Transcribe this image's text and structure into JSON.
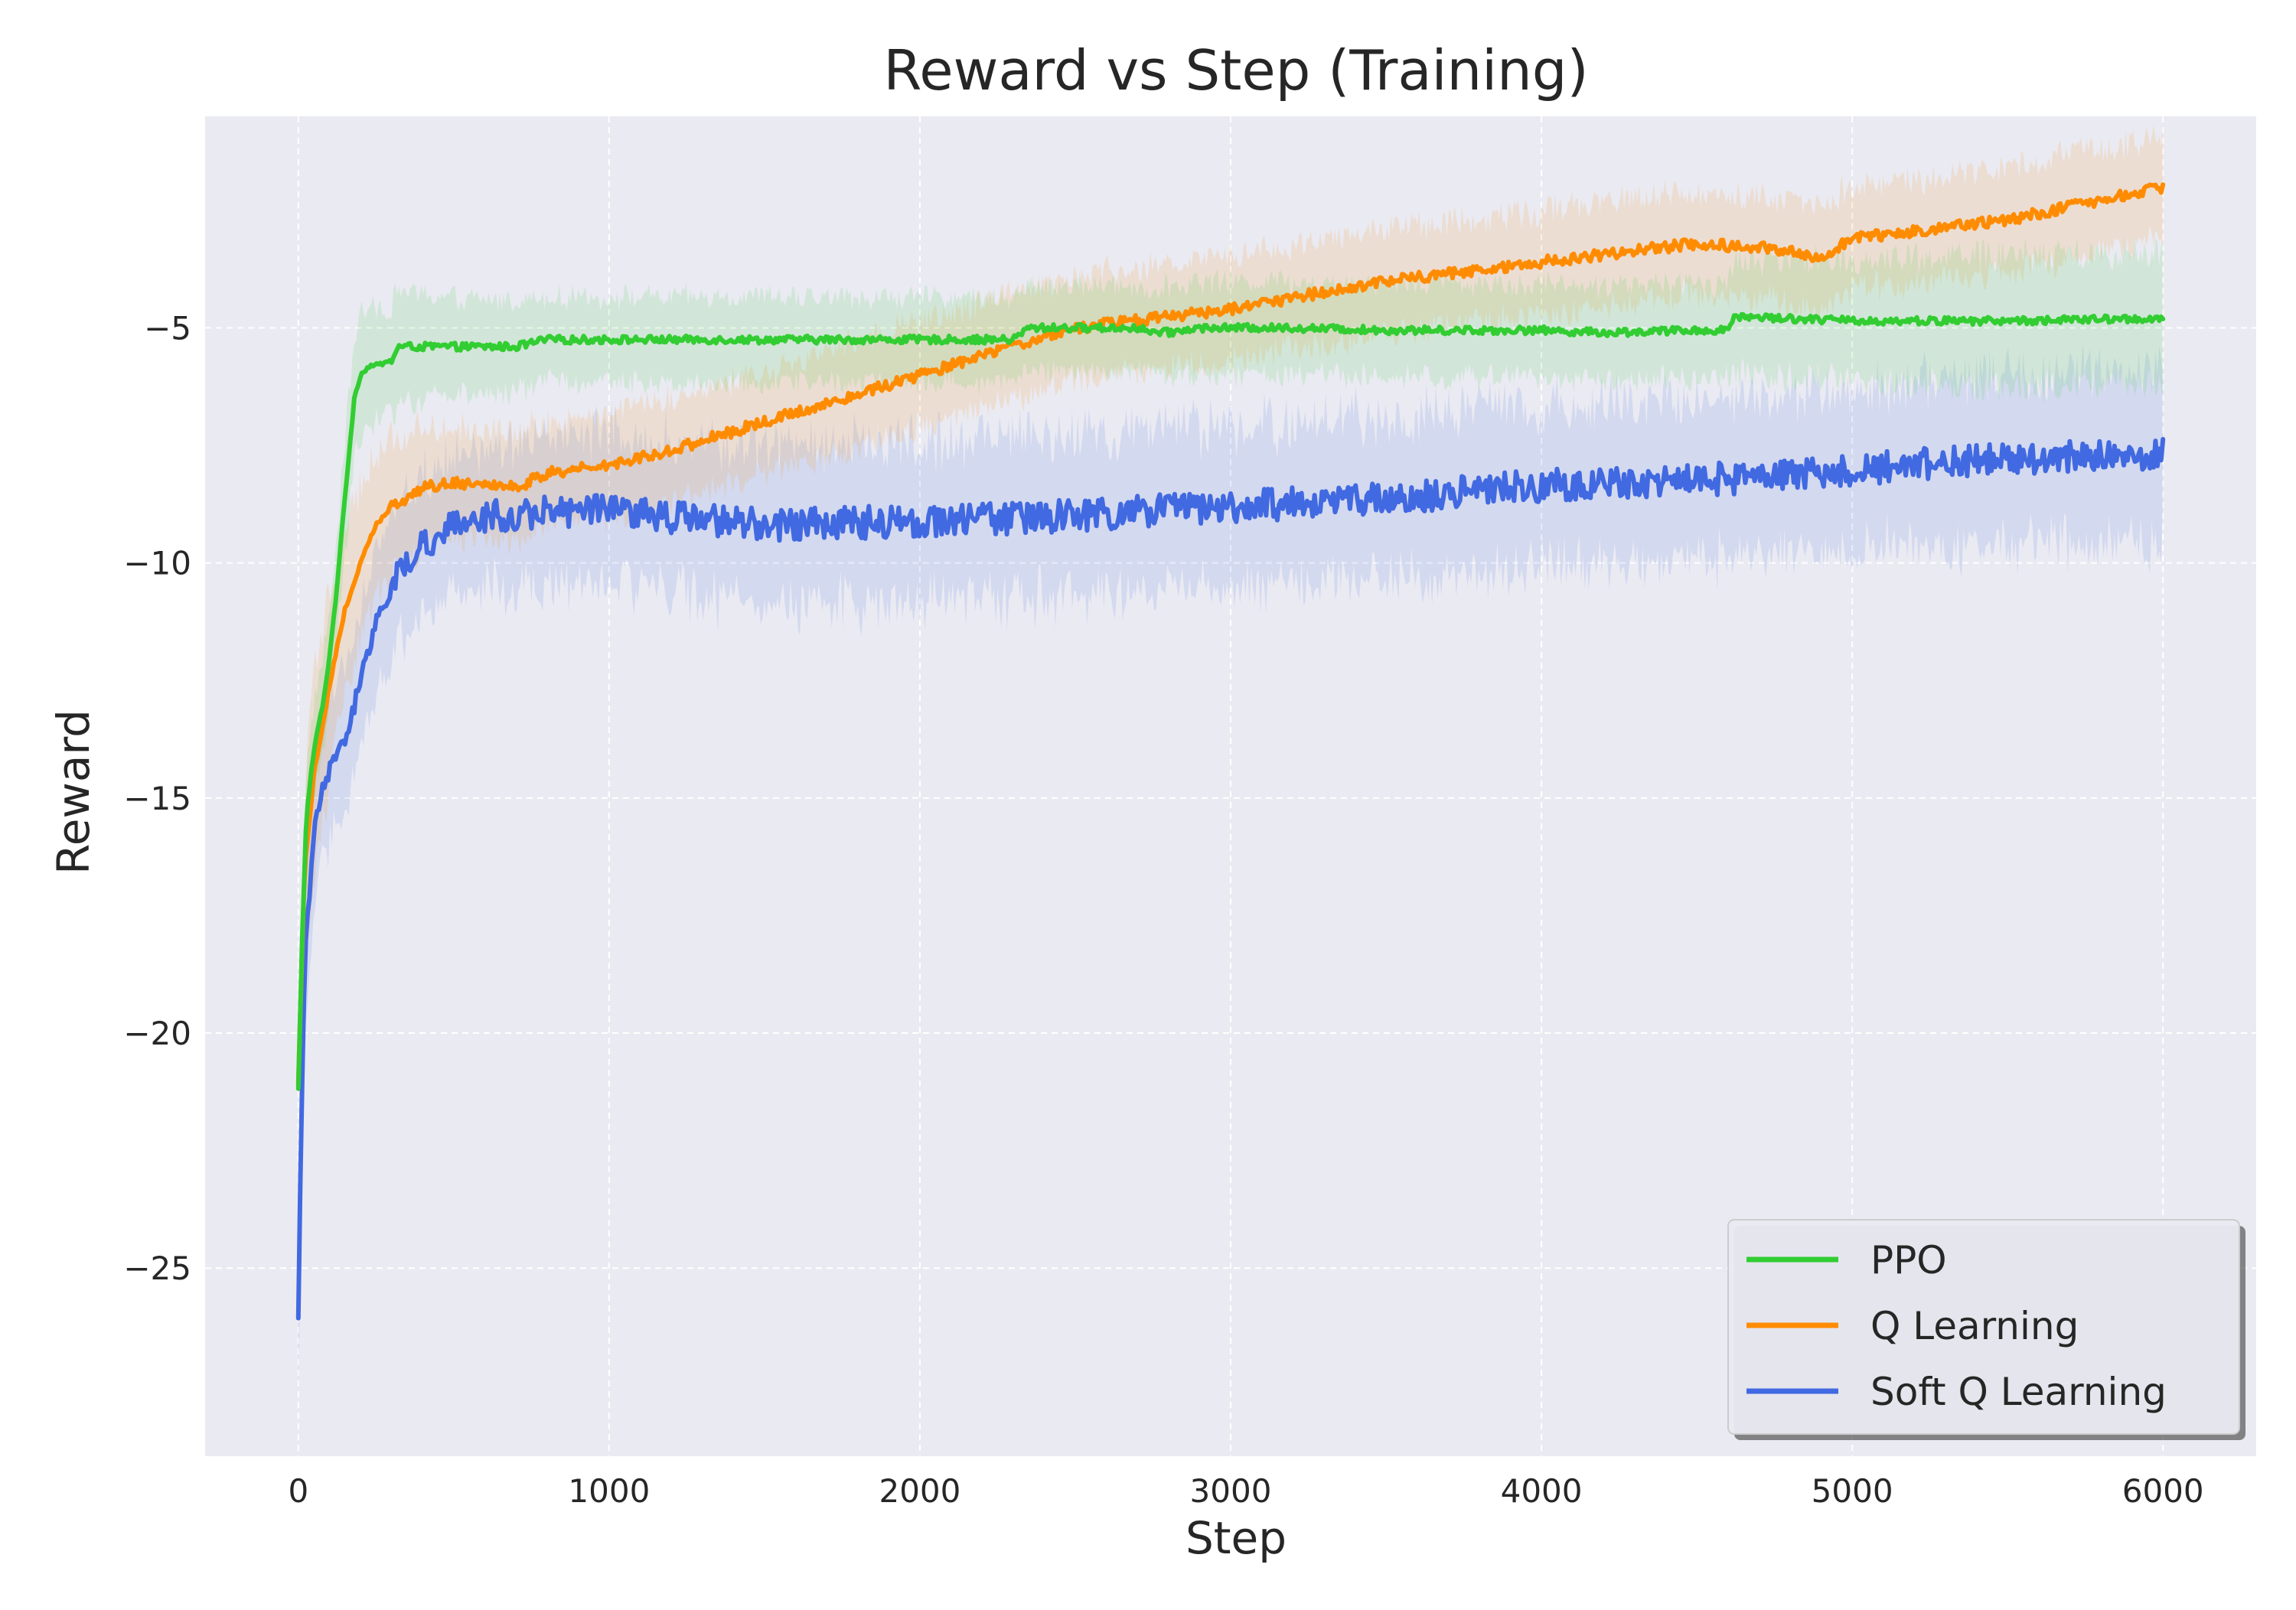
{
  "chart_data": {
    "type": "line",
    "title": "Reward vs Step (Training)",
    "xlabel": "Step",
    "ylabel": "Reward",
    "xlim": [
      -300,
      6300
    ],
    "ylim": [
      -29,
      -0.5
    ],
    "xticks": [
      0,
      1000,
      2000,
      3000,
      4000,
      5000,
      6000
    ],
    "xtick_labels": [
      "0",
      "1000",
      "2000",
      "3000",
      "4000",
      "5000",
      "6000"
    ],
    "yticks": [
      -25,
      -20,
      -15,
      -10,
      -5
    ],
    "ytick_labels": [
      "−25",
      "−20",
      "−15",
      "−10",
      "−5"
    ],
    "grid": true,
    "legend_position": "lower-right",
    "series": [
      {
        "name": "PPO",
        "color": "#32cd32",
        "x": [
          0,
          10,
          25,
          40,
          60,
          80,
          100,
          120,
          150,
          180,
          200,
          230,
          250,
          300,
          320,
          500,
          700,
          800,
          1000,
          1500,
          2000,
          2300,
          2350,
          2500,
          2700,
          2750,
          2800,
          2900,
          3000,
          3200,
          3500,
          4000,
          4200,
          4500,
          4600,
          4620,
          5000,
          5500,
          6000
        ],
        "y": [
          -21.2,
          -18.5,
          -15.5,
          -14.5,
          -13.6,
          -13.0,
          -12.0,
          -10.8,
          -8.6,
          -6.5,
          -6.0,
          -5.8,
          -5.8,
          -5.7,
          -5.4,
          -5.4,
          -5.4,
          -5.25,
          -5.25,
          -5.25,
          -5.25,
          -5.25,
          -5.0,
          -5.0,
          -5.0,
          -5.1,
          -5.1,
          -5.0,
          -5.0,
          -5.0,
          -5.05,
          -5.05,
          -5.1,
          -5.05,
          -5.05,
          -4.75,
          -4.85,
          -4.85,
          -4.8
        ],
        "band_width": [
          0.2,
          0.8,
          1.0,
          1.0,
          1.0,
          1.0,
          1.0,
          1.0,
          1.2,
          1.3,
          1.3,
          1.2,
          1.2,
          1.2,
          1.2,
          1.0,
          1.0,
          0.9,
          0.9,
          0.9,
          0.9,
          0.9,
          0.9,
          0.9,
          0.9,
          0.9,
          1.0,
          1.0,
          1.0,
          1.0,
          1.0,
          1.0,
          1.0,
          1.0,
          1.0,
          1.2,
          1.3,
          1.4,
          1.4
        ],
        "noise": 0.08
      },
      {
        "name": "Q Learning",
        "color": "#ff8c00",
        "x": [
          0,
          20,
          50,
          100,
          150,
          200,
          250,
          300,
          400,
          500,
          600,
          700,
          800,
          1000,
          1200,
          1500,
          2000,
          2500,
          3000,
          3500,
          4000,
          4500,
          4800,
          4900,
          5000,
          5500,
          6000
        ],
        "y": [
          -21.0,
          -16.5,
          -14.5,
          -12.6,
          -11.0,
          -10.0,
          -9.2,
          -8.8,
          -8.4,
          -8.3,
          -8.3,
          -8.4,
          -8.1,
          -7.9,
          -7.6,
          -7.0,
          -6.0,
          -5.0,
          -4.6,
          -4.0,
          -3.6,
          -3.2,
          -3.35,
          -3.5,
          -3.1,
          -2.7,
          -2.0
        ],
        "band_width": [
          0.5,
          1.8,
          2.0,
          2.0,
          1.8,
          1.6,
          1.5,
          1.4,
          1.3,
          1.2,
          1.2,
          1.2,
          1.1,
          1.1,
          1.1,
          1.1,
          1.1,
          1.1,
          1.1,
          1.1,
          1.1,
          1.1,
          1.1,
          1.1,
          1.1,
          1.1,
          1.1
        ],
        "noise": 0.12
      },
      {
        "name": "Soft Q Learning",
        "color": "#4169e1",
        "x": [
          0,
          8,
          20,
          40,
          60,
          100,
          150,
          200,
          250,
          300,
          400,
          500,
          600,
          700,
          800,
          1000,
          1500,
          2000,
          2500,
          3000,
          3500,
          4000,
          4500,
          5000,
          5500,
          6000
        ],
        "y": [
          -26.0,
          -22.5,
          -18.5,
          -16.6,
          -15.2,
          -14.4,
          -13.8,
          -12.5,
          -11.2,
          -10.5,
          -9.6,
          -9.2,
          -9.0,
          -9.0,
          -8.9,
          -8.9,
          -9.2,
          -9.1,
          -9.0,
          -8.8,
          -8.65,
          -8.35,
          -8.25,
          -8.0,
          -7.8,
          -7.7
        ],
        "band_width": [
          2.0,
          1.8,
          1.6,
          1.5,
          1.5,
          1.5,
          1.5,
          1.5,
          1.5,
          1.5,
          1.5,
          1.5,
          1.5,
          1.5,
          1.5,
          1.6,
          1.7,
          1.7,
          1.7,
          1.7,
          1.7,
          1.7,
          1.7,
          1.7,
          1.8,
          1.8
        ],
        "noise": 0.35
      }
    ]
  }
}
